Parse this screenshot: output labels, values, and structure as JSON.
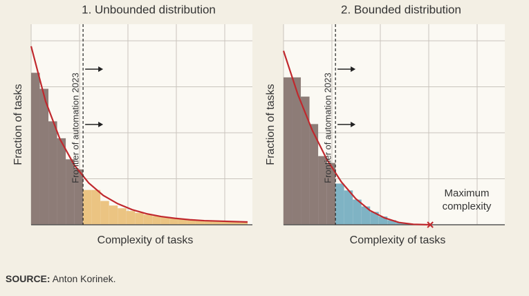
{
  "chart_data": [
    {
      "type": "histogram",
      "title": "1. Unbounded distribution",
      "xlabel": "Complexity of tasks",
      "ylabel": "Fraction of tasks",
      "xlim": [
        0,
        4.6
      ],
      "ylim": [
        0,
        4.2
      ],
      "grid": true,
      "bins": [
        0,
        0.18,
        0.36,
        0.54,
        0.72,
        0.9,
        1.08,
        1.26,
        1.44,
        1.62,
        1.8,
        1.98,
        2.16,
        2.34,
        2.52,
        2.7,
        2.88,
        3.06,
        3.24,
        3.42,
        3.6,
        3.78,
        3.96,
        4.14,
        4.32,
        4.5
      ],
      "counts": [
        3.32,
        2.97,
        2.26,
        1.89,
        1.43,
        1.21,
        0.76,
        0.76,
        0.52,
        0.42,
        0.36,
        0.3,
        0.26,
        0.22,
        0.19,
        0.17,
        0.15,
        0.13,
        0.12,
        0.1,
        0.09,
        0.08,
        0.07,
        0.06,
        0.05
      ],
      "below_color": "#8d7c77",
      "above_color": "#ebc482",
      "frontier": 1.08,
      "frontier_label": "Frontier of automation 2023",
      "curve_x": [
        0,
        0.3,
        0.6,
        0.9,
        1.2,
        1.5,
        1.8,
        2.1,
        2.4,
        2.7,
        3.0,
        3.3,
        3.6,
        3.9,
        4.2,
        4.5
      ],
      "curve_values": [
        3.9,
        2.7,
        1.87,
        1.3,
        0.91,
        0.64,
        0.46,
        0.33,
        0.24,
        0.18,
        0.14,
        0.11,
        0.09,
        0.08,
        0.07,
        0.06
      ],
      "curve_color": "#c0282d"
    },
    {
      "type": "histogram",
      "title": "2. Bounded distribution",
      "xlabel": "Complexity of tasks",
      "ylabel": "Fraction of tasks",
      "xlim": [
        0,
        4.6
      ],
      "ylim": [
        0,
        4.2
      ],
      "grid": true,
      "bins": [
        0,
        0.18,
        0.36,
        0.54,
        0.72,
        0.9,
        1.08,
        1.26,
        1.44,
        1.62,
        1.8,
        1.98,
        2.16,
        2.34,
        2.52,
        2.7,
        2.88
      ],
      "counts": [
        3.22,
        3.22,
        2.8,
        2.2,
        1.5,
        1.35,
        0.9,
        0.75,
        0.55,
        0.4,
        0.28,
        0.18,
        0.1,
        0.05,
        0.02,
        0.01
      ],
      "below_color": "#8d7c77",
      "above_color": "#7fb3c4",
      "frontier": 1.08,
      "frontier_label": "Frontier of automation 2023",
      "curve_x": [
        0,
        0.3,
        0.6,
        0.9,
        1.2,
        1.5,
        1.8,
        2.1,
        2.4,
        2.7,
        3.05
      ],
      "curve_values": [
        3.8,
        2.84,
        2.06,
        1.43,
        0.94,
        0.57,
        0.31,
        0.15,
        0.05,
        0.01,
        0
      ],
      "curve_color": "#c0282d",
      "max_x": 3.05,
      "annotation": "Maximum complexity"
    }
  ],
  "source_label": "SOURCE:",
  "source_text": "Anton Korinek."
}
